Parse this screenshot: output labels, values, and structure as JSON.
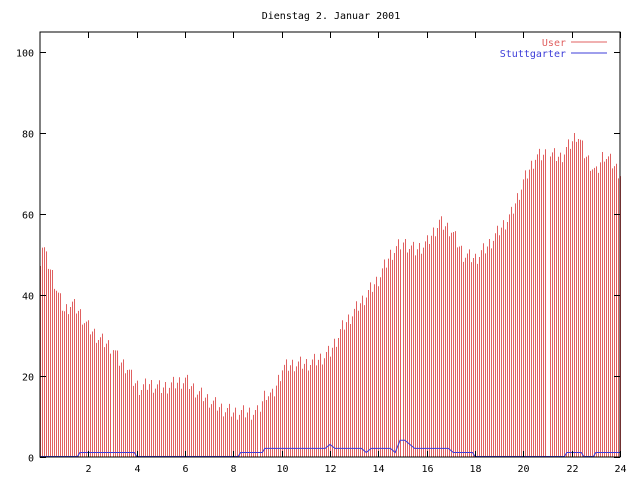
{
  "chart_data": {
    "type": "bar",
    "title": "Dienstag 2. Januar 2001",
    "xlabel": "",
    "ylabel": "",
    "xlim": [
      0,
      24
    ],
    "ylim": [
      0,
      105
    ],
    "x_ticks": [
      2,
      4,
      6,
      8,
      10,
      12,
      14,
      16,
      18,
      20,
      22,
      24
    ],
    "y_ticks": [
      0,
      20,
      40,
      60,
      80,
      100
    ],
    "grid": false,
    "legend_position": "top-right",
    "sample_interval_minutes": 5,
    "series": [
      {
        "name": "User",
        "style": "impulses",
        "color": "#e06060",
        "anchors": [
          [
            0.0,
            49
          ],
          [
            0.1,
            53
          ],
          [
            0.25,
            49
          ],
          [
            0.5,
            45
          ],
          [
            0.75,
            40
          ],
          [
            1.0,
            36
          ],
          [
            1.3,
            38
          ],
          [
            1.6,
            36
          ],
          [
            2.0,
            32
          ],
          [
            2.5,
            29
          ],
          [
            3.0,
            27
          ],
          [
            3.2,
            24
          ],
          [
            3.6,
            22
          ],
          [
            3.8,
            19
          ],
          [
            4.1,
            17
          ],
          [
            4.5,
            18
          ],
          [
            5.0,
            17
          ],
          [
            5.5,
            18
          ],
          [
            6.0,
            19
          ],
          [
            6.5,
            16
          ],
          [
            7.0,
            14
          ],
          [
            7.5,
            12
          ],
          [
            8.0,
            11
          ],
          [
            8.5,
            11
          ],
          [
            9.0,
            11
          ],
          [
            9.3,
            16
          ],
          [
            9.6,
            15
          ],
          [
            10.0,
            22
          ],
          [
            10.5,
            23
          ],
          [
            11.0,
            23
          ],
          [
            11.5,
            24
          ],
          [
            12.0,
            26
          ],
          [
            12.5,
            32
          ],
          [
            13.0,
            36
          ],
          [
            13.5,
            40
          ],
          [
            14.0,
            44
          ],
          [
            14.5,
            50
          ],
          [
            15.0,
            53
          ],
          [
            15.5,
            51
          ],
          [
            16.0,
            53
          ],
          [
            16.5,
            58
          ],
          [
            17.0,
            56
          ],
          [
            17.5,
            50
          ],
          [
            18.0,
            49
          ],
          [
            18.5,
            52
          ],
          [
            19.0,
            56
          ],
          [
            19.5,
            60
          ],
          [
            20.0,
            68
          ],
          [
            20.5,
            74
          ],
          [
            21.0,
            75
          ],
          [
            21.5,
            74
          ],
          [
            22.0,
            78
          ],
          [
            22.2,
            80
          ],
          [
            22.5,
            75
          ],
          [
            23.0,
            70
          ],
          [
            23.3,
            75
          ],
          [
            23.6,
            73
          ],
          [
            24.0,
            70
          ]
        ],
        "gaps": [
          [
            20.95,
            21.05
          ]
        ]
      },
      {
        "name": "Stuttgarter",
        "style": "line",
        "color": "#3c3cd8",
        "anchors": [
          [
            0.0,
            0
          ],
          [
            1.55,
            0
          ],
          [
            1.65,
            1
          ],
          [
            3.9,
            1
          ],
          [
            4.0,
            0
          ],
          [
            8.2,
            0
          ],
          [
            8.3,
            1
          ],
          [
            9.2,
            1
          ],
          [
            9.3,
            2
          ],
          [
            11.8,
            2
          ],
          [
            12.0,
            3
          ],
          [
            12.2,
            2
          ],
          [
            13.3,
            2
          ],
          [
            13.5,
            1
          ],
          [
            13.7,
            2
          ],
          [
            14.5,
            2
          ],
          [
            14.7,
            1
          ],
          [
            14.9,
            4
          ],
          [
            15.1,
            4
          ],
          [
            15.3,
            3
          ],
          [
            15.5,
            2
          ],
          [
            16.9,
            2
          ],
          [
            17.1,
            1
          ],
          [
            17.9,
            1
          ],
          [
            18.0,
            0
          ],
          [
            21.7,
            0
          ],
          [
            21.8,
            1
          ],
          [
            22.4,
            1
          ],
          [
            22.5,
            0
          ],
          [
            22.9,
            0
          ],
          [
            23.0,
            1
          ],
          [
            24.0,
            1
          ]
        ]
      }
    ]
  }
}
